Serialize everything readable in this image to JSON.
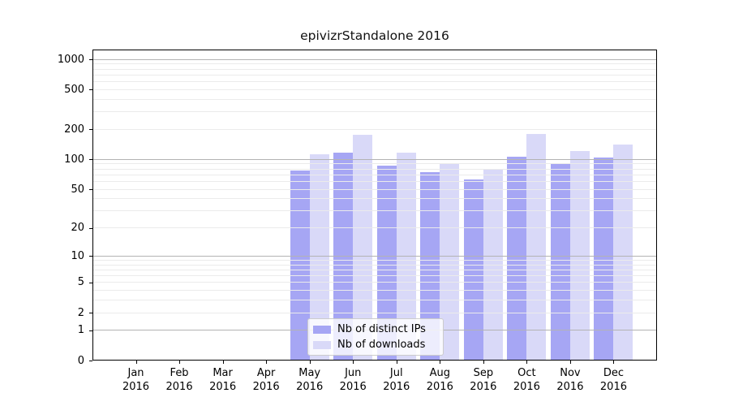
{
  "colors": {
    "distinct_ips": "#a6a6f4",
    "downloads": "#d9d9f8",
    "grid_major": "#b3b3b3",
    "grid_minor": "#ebebeb",
    "axis": "#000000",
    "background": "#ffffff"
  },
  "legend": {
    "items": [
      {
        "label": "Nb of distinct IPs",
        "color_key": "distinct_ips"
      },
      {
        "label": "Nb of downloads",
        "color_key": "downloads"
      }
    ]
  },
  "chart_data": {
    "type": "bar",
    "title": "epivizrStandalone 2016",
    "categories": [
      "Jan 2016",
      "Feb 2016",
      "Mar 2016",
      "Apr 2016",
      "May 2016",
      "Jun 2016",
      "Jul 2016",
      "Aug 2016",
      "Sep 2016",
      "Oct 2016",
      "Nov 2016",
      "Dec 2016"
    ],
    "month_labels": [
      "Jan",
      "Feb",
      "Mar",
      "Apr",
      "May",
      "Jun",
      "Jul",
      "Aug",
      "Sep",
      "Oct",
      "Nov",
      "Dec"
    ],
    "year_label": "2016",
    "series": [
      {
        "name": "Nb of distinct IPs",
        "values": [
          0,
          0,
          0,
          0,
          78,
          118,
          87,
          74,
          63,
          106,
          91,
          105
        ]
      },
      {
        "name": "Nb of downloads",
        "values": [
          0,
          0,
          0,
          0,
          113,
          178,
          117,
          90,
          79,
          181,
          121,
          142
        ]
      }
    ],
    "y_ticks": [
      0,
      1,
      2,
      5,
      10,
      20,
      50,
      100,
      200,
      500,
      1000
    ],
    "y_major_gridlines": [
      1,
      10,
      100,
      1000
    ],
    "y_scale": "log1p",
    "ylim": [
      0,
      1260
    ],
    "grid": true,
    "legend_position": "lower center"
  }
}
